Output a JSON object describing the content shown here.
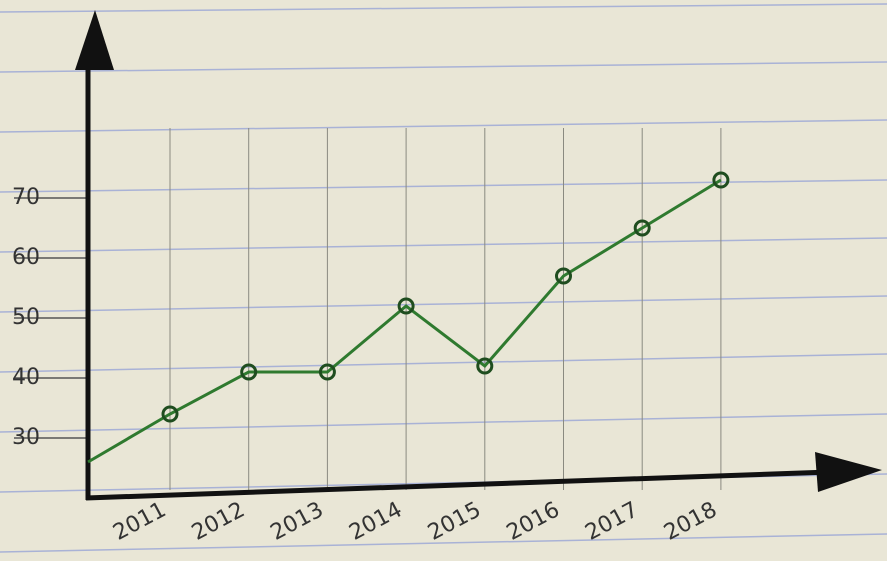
{
  "chart_data": {
    "type": "line",
    "categories": [
      "2011",
      "2012",
      "2013",
      "2014",
      "2015",
      "2016",
      "2017",
      "2018"
    ],
    "values": [
      34,
      41,
      41,
      52,
      42,
      57,
      65,
      73
    ],
    "color": "#2f7a2f",
    "ylim": [
      20,
      100
    ],
    "yticks": [
      30,
      40,
      50,
      60,
      70
    ],
    "grid": true
  }
}
